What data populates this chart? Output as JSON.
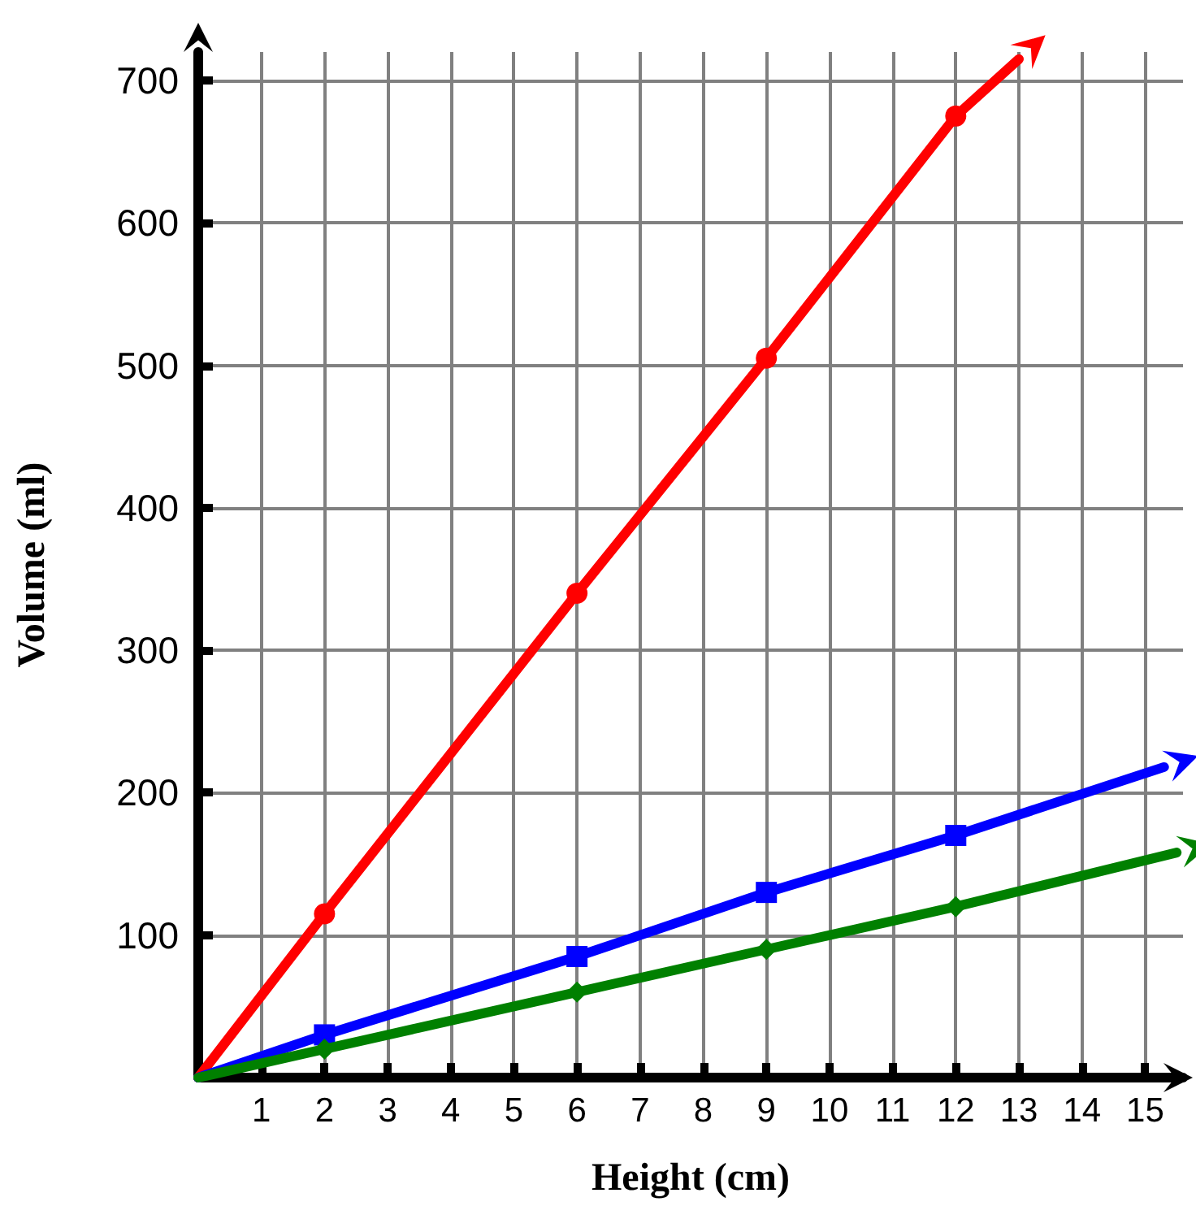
{
  "chart_data": {
    "type": "line",
    "xlabel": "Height (cm)",
    "ylabel": "Volume (ml)",
    "series": [
      {
        "color": "#ff0000",
        "marker": "circle",
        "x": [
          0,
          2,
          6,
          9,
          12,
          13
        ],
        "values": [
          0,
          115,
          340,
          505,
          675,
          715
        ]
      },
      {
        "color": "#0000ff",
        "marker": "square",
        "x": [
          0,
          2,
          6,
          9,
          12,
          15.3
        ],
        "values": [
          0,
          30,
          85,
          130,
          170,
          218
        ]
      },
      {
        "color": "#008000",
        "marker": "diamond",
        "x": [
          0,
          2,
          6,
          9,
          12,
          15.5
        ],
        "values": [
          0,
          20,
          60,
          90,
          120,
          158
        ]
      }
    ],
    "xlim": [
      0,
      15.6
    ],
    "xticks": [
      1,
      2,
      3,
      4,
      5,
      6,
      7,
      8,
      9,
      10,
      11,
      12,
      13,
      14,
      15
    ],
    "ylim": [
      0,
      720
    ],
    "yticks": [
      100,
      200,
      300,
      400,
      500,
      600,
      700
    ],
    "grid": true,
    "line_style": "solid"
  }
}
